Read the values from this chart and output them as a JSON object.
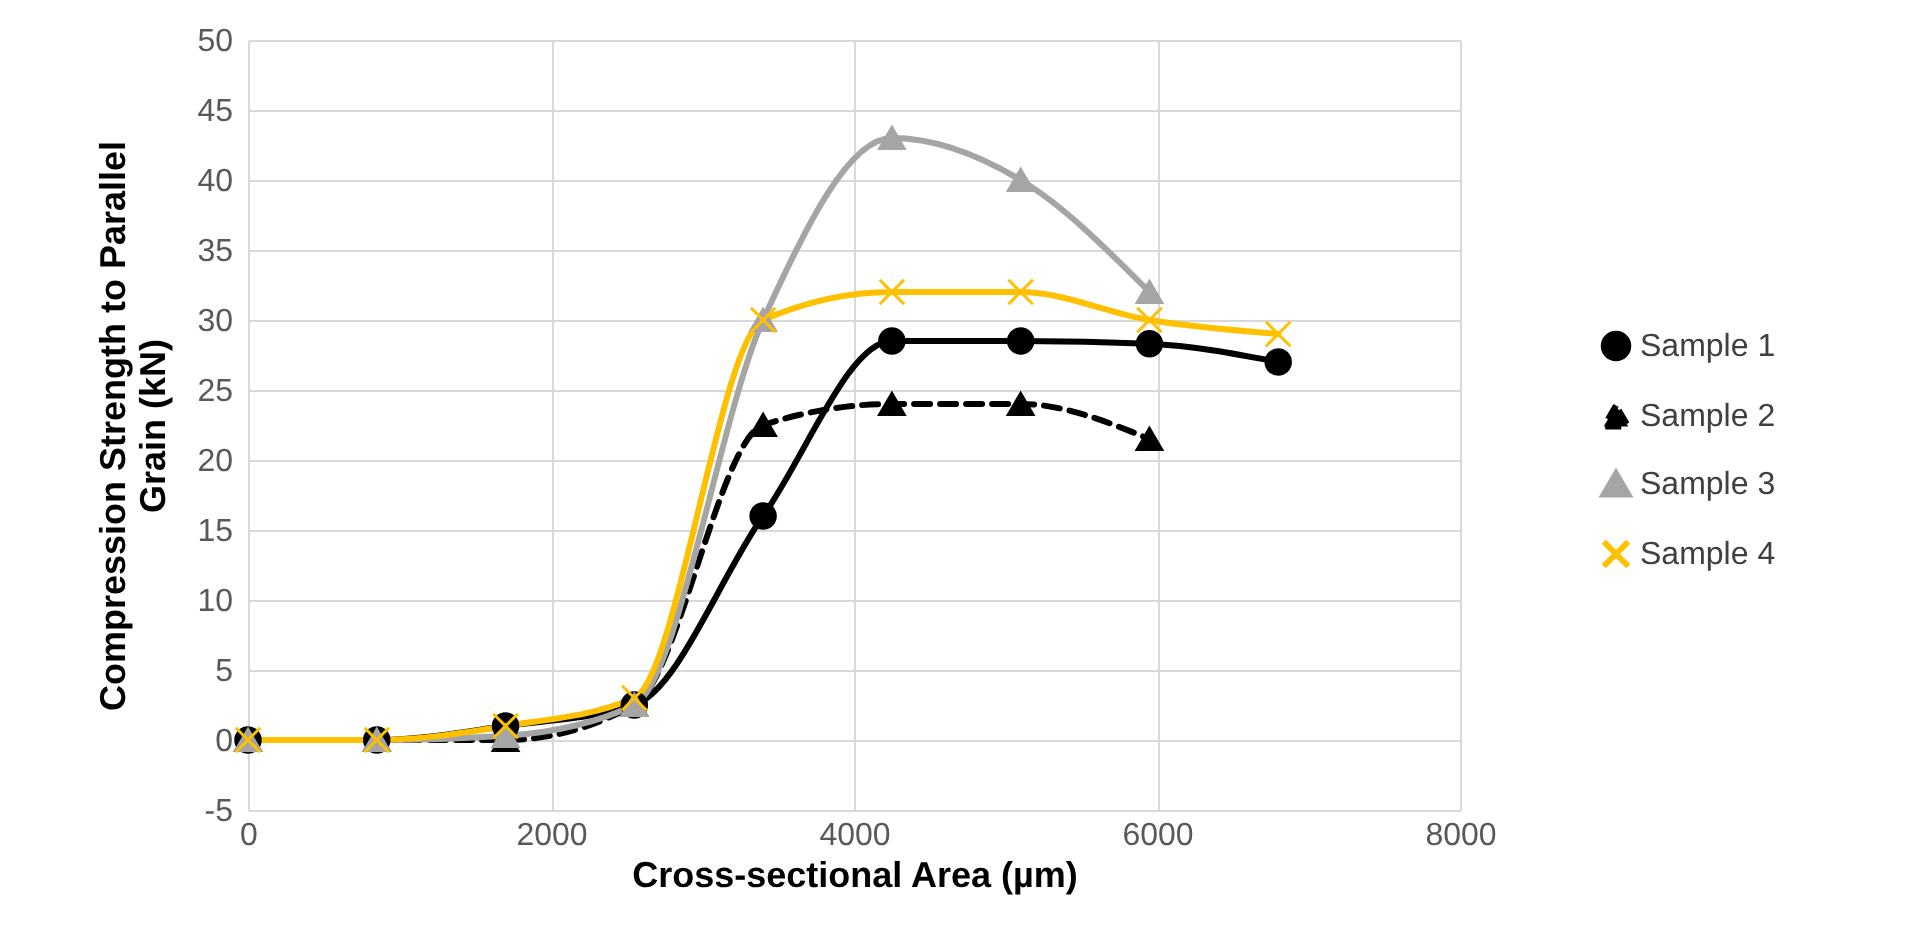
{
  "chart_data": {
    "type": "line",
    "xlabel": "Cross-sectional Area (µm)",
    "ylabel": "Compression Strength to Parallel Grain (kN)",
    "xlim": [
      0,
      8000
    ],
    "xticks": [
      0,
      {
        "value": 2000,
        "label": "2000"
      },
      {
        "value": 4000,
        "label": "4000"
      },
      {
        "value": 6000,
        "label": "6000"
      },
      {
        "value": 8000,
        "label": "8000"
      }
    ],
    "ylim": [
      -5,
      50
    ],
    "yticks": [
      -5,
      0,
      5,
      10,
      15,
      20,
      25,
      30,
      35,
      40,
      45,
      50
    ],
    "grid": true,
    "legend": "right",
    "x": [
      0,
      850,
      1700,
      2550,
      3400,
      4250,
      5100,
      5950,
      6800
    ],
    "series": [
      {
        "name": "Sample 1",
        "color": "#000000",
        "marker": "circle",
        "line_style": "solid",
        "values": [
          0,
          0,
          1,
          2.5,
          16,
          28.5,
          28.5,
          28.3,
          27
        ]
      },
      {
        "name": "Sample 2",
        "color": "#000000",
        "marker": "triangle",
        "line_style": "dashed",
        "values": [
          0,
          0,
          0,
          2.5,
          22.5,
          24,
          24,
          21.5,
          null
        ]
      },
      {
        "name": "Sample 3",
        "color": "#a5a5a5",
        "marker": "triangle",
        "line_style": "solid",
        "values": [
          0,
          0,
          0.3,
          2.5,
          30,
          43,
          40,
          32,
          null
        ]
      },
      {
        "name": "Sample 4",
        "color": "#ffc000",
        "marker": "cross",
        "line_style": "solid",
        "values": [
          0,
          0,
          1,
          3,
          30,
          32,
          32,
          30,
          29
        ]
      }
    ]
  }
}
